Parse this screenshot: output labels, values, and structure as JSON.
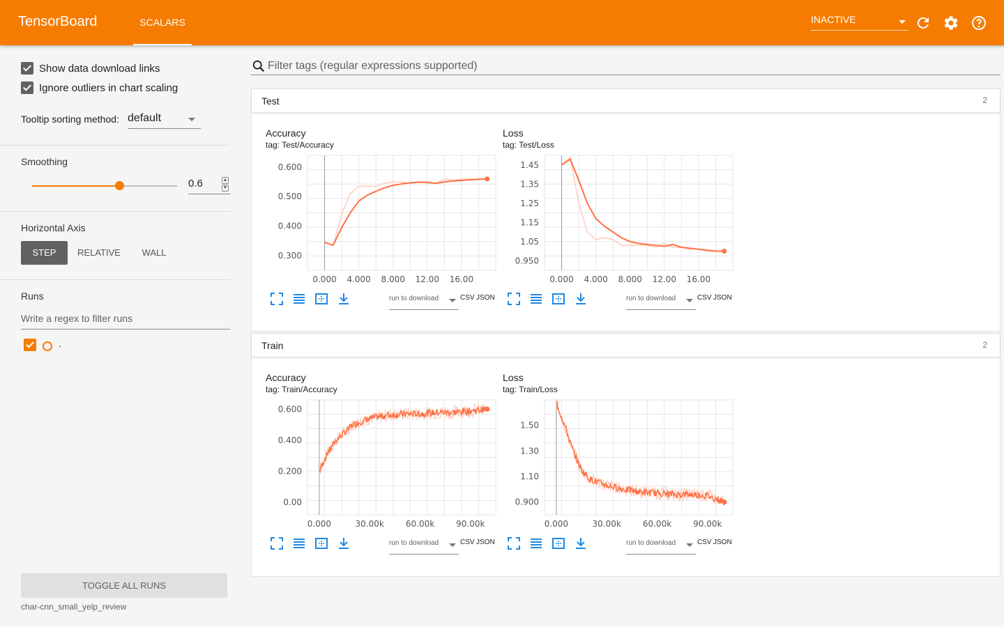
{
  "header": {
    "brand": "TensorBoard",
    "tab": "SCALARS",
    "inactive_select": "INACTIVE",
    "icons": [
      "refresh-icon",
      "settings-icon",
      "help-icon"
    ]
  },
  "sidebar": {
    "show_download_links": "Show data download links",
    "ignore_outliers": "Ignore outliers in chart scaling",
    "tooltip_label": "Tooltip sorting method:",
    "tooltip_value": "default",
    "smoothing_title": "Smoothing",
    "smoothing_value": "0.6",
    "smoothing_fraction": 0.6,
    "horizontal_axis_title": "Horizontal Axis",
    "axis_options": [
      "STEP",
      "RELATIVE",
      "WALL"
    ],
    "axis_selected": "STEP",
    "runs_title": "Runs",
    "runs_filter_placeholder": "Write a regex to filter runs",
    "run_label": ".",
    "toggle_all": "TOGGLE ALL RUNS",
    "log_dir": "char-cnn_small_yelp_review"
  },
  "main": {
    "filter_placeholder": "Filter tags (regular expressions supported)",
    "sections": [
      {
        "title": "Test",
        "count": "2",
        "charts": [
          {
            "title": "Accuracy",
            "tag": "tag: Test/Accuracy"
          },
          {
            "title": "Loss",
            "tag": "tag: Test/Loss"
          }
        ]
      },
      {
        "title": "Train",
        "count": "2",
        "charts": [
          {
            "title": "Accuracy",
            "tag": "tag: Train/Accuracy"
          },
          {
            "title": "Loss",
            "tag": "tag: Train/Loss"
          }
        ]
      }
    ],
    "run_to_download": "run to download",
    "csv": "CSV",
    "json": "JSON"
  },
  "colors": {
    "accent": "#f57c00",
    "series": "#ff7043",
    "series_raw": "#ffccbc"
  },
  "chart_data": [
    {
      "type": "line",
      "title": "Accuracy",
      "xlim": [
        -2,
        20
      ],
      "ylim": [
        0.25,
        0.64
      ],
      "x_ticks": [
        "0.000",
        "4.000",
        "8.000",
        "12.00",
        "16.00"
      ],
      "x_tick_values": [
        0,
        4,
        8,
        12,
        16
      ],
      "y_ticks": [
        "0.300",
        "0.400",
        "0.500",
        "0.600"
      ],
      "y_tick_values": [
        0.3,
        0.4,
        0.5,
        0.6
      ],
      "series": [
        {
          "x": [
            0,
            1,
            2,
            3,
            4,
            5,
            6,
            7,
            8,
            9,
            10,
            11,
            12,
            13,
            14,
            15,
            16,
            17,
            18,
            19
          ],
          "values": [
            0.345,
            0.335,
            0.44,
            0.51,
            0.535,
            0.535,
            0.535,
            0.545,
            0.55,
            0.55,
            0.545,
            0.55,
            0.55,
            0.545,
            0.56,
            0.555,
            0.56,
            0.56,
            0.56,
            0.56
          ]
        },
        {
          "x": [
            0,
            1,
            2,
            3,
            4,
            5,
            6,
            7,
            8,
            9,
            10,
            11,
            12,
            13,
            14,
            15,
            16,
            17,
            18,
            19
          ],
          "values": [
            0.345,
            0.335,
            0.395,
            0.445,
            0.485,
            0.505,
            0.518,
            0.53,
            0.538,
            0.543,
            0.547,
            0.549,
            0.548,
            0.545,
            0.55,
            0.553,
            0.555,
            0.557,
            0.559,
            0.56
          ]
        }
      ]
    },
    {
      "type": "line",
      "title": "Loss",
      "xlim": [
        -2,
        20
      ],
      "ylim": [
        0.9,
        1.5
      ],
      "x_ticks": [
        "0.000",
        "4.000",
        "8.000",
        "12.00",
        "16.00"
      ],
      "x_tick_values": [
        0,
        4,
        8,
        12,
        16
      ],
      "y_ticks": [
        "0.950",
        "1.05",
        "1.15",
        "1.25",
        "1.35",
        "1.45"
      ],
      "y_tick_values": [
        0.95,
        1.05,
        1.15,
        1.25,
        1.35,
        1.45
      ],
      "series": [
        {
          "x": [
            0,
            1,
            2,
            3,
            4,
            5,
            6,
            7,
            8,
            9,
            10,
            11,
            12,
            13,
            14,
            15,
            16,
            17,
            18,
            19
          ],
          "values": [
            1.45,
            1.49,
            1.25,
            1.1,
            1.06,
            1.07,
            1.06,
            1.03,
            1.03,
            1.03,
            1.03,
            1.02,
            1.04,
            1.02,
            1.02,
            1.01,
            1.01,
            1.0,
            1.0,
            1.0
          ]
        },
        {
          "x": [
            0,
            1,
            2,
            3,
            4,
            5,
            6,
            7,
            8,
            9,
            10,
            11,
            12,
            13,
            14,
            15,
            16,
            17,
            18,
            19
          ],
          "values": [
            1.45,
            1.48,
            1.37,
            1.25,
            1.17,
            1.13,
            1.1,
            1.07,
            1.05,
            1.04,
            1.035,
            1.03,
            1.025,
            1.035,
            1.02,
            1.015,
            1.01,
            1.005,
            1.0,
            1.0
          ]
        }
      ]
    },
    {
      "type": "line",
      "title": "Accuracy",
      "xlim": [
        -7000,
        105000
      ],
      "ylim": [
        -0.08,
        0.66
      ],
      "x_ticks": [
        "0.000",
        "30.00k",
        "60.00k",
        "90.00k"
      ],
      "x_tick_values": [
        0,
        30000,
        60000,
        90000
      ],
      "y_ticks": [
        "0.00",
        "0.200",
        "0.400",
        "0.600"
      ],
      "y_tick_values": [
        0.0,
        0.2,
        0.4,
        0.6
      ],
      "series": [
        {
          "name_hidden": true,
          "x": [
            0,
            5000,
            10000,
            15000,
            20000,
            30000,
            40000,
            50000,
            60000,
            70000,
            80000,
            90000,
            100000
          ],
          "values": [
            0.2,
            0.32,
            0.4,
            0.45,
            0.5,
            0.54,
            0.56,
            0.57,
            0.57,
            0.58,
            0.58,
            0.59,
            0.6
          ]
        }
      ]
    },
    {
      "type": "line",
      "title": "Loss",
      "xlim": [
        -7000,
        105000
      ],
      "ylim": [
        0.8,
        1.7
      ],
      "x_ticks": [
        "0.000",
        "30.00k",
        "60.00k",
        "90.00k"
      ],
      "x_tick_values": [
        0,
        30000,
        60000,
        90000
      ],
      "y_ticks": [
        "0.900",
        "1.10",
        "1.30",
        "1.50"
      ],
      "y_tick_values": [
        0.9,
        1.1,
        1.3,
        1.5
      ],
      "series": [
        {
          "x": [
            0,
            5000,
            10000,
            15000,
            20000,
            30000,
            40000,
            50000,
            60000,
            70000,
            80000,
            90000,
            100000
          ],
          "values": [
            1.68,
            1.5,
            1.3,
            1.15,
            1.08,
            1.03,
            1.0,
            0.98,
            0.97,
            0.96,
            0.96,
            0.95,
            0.9
          ]
        }
      ]
    }
  ]
}
